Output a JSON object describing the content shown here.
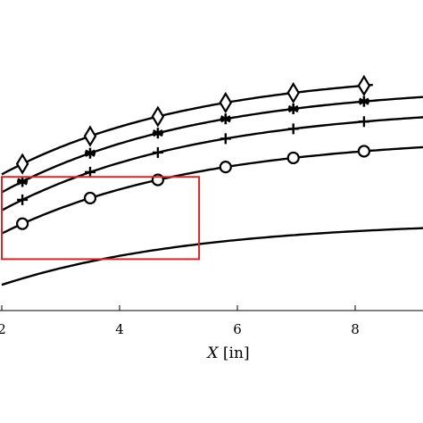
{
  "chart_data": {
    "type": "line",
    "xlabel": {
      "variable": "X",
      "unit": "[in]"
    },
    "ylabel": "",
    "title": "",
    "x_ticks": [
      2,
      4,
      6,
      8
    ],
    "xlim": [
      2,
      10.3
    ],
    "ylim": [
      0,
      1
    ],
    "grid": false,
    "marker_x": [
      2.35,
      3.5,
      4.65,
      5.8,
      6.95,
      8.15
    ],
    "series": [
      {
        "marker": "diamond",
        "curve_a": 0.53,
        "curve_b": 0.41,
        "curve_k": 0.3,
        "x_from": 2,
        "x_to": 8.3
      },
      {
        "marker": "asterisk",
        "curve_a": 0.46,
        "curve_b": 0.42,
        "curve_k": 0.3,
        "x_from": 2,
        "x_to": 10.3
      },
      {
        "marker": "plus",
        "curve_a": 0.39,
        "curve_b": 0.41,
        "curve_k": 0.3,
        "x_from": 2,
        "x_to": 10.3
      },
      {
        "marker": "circle",
        "curve_a": 0.3,
        "curve_b": 0.38,
        "curve_k": 0.3,
        "x_from": 2,
        "x_to": 10.3
      },
      {
        "marker": "none",
        "curve_a": 0.1,
        "curve_b": 0.25,
        "curve_k": 0.3,
        "x_from": 2,
        "x_to": 10.3
      }
    ],
    "highlight_box": {
      "x": [
        2.0,
        5.35
      ],
      "y": [
        0.2,
        0.52
      ],
      "color": "#d62728"
    }
  }
}
